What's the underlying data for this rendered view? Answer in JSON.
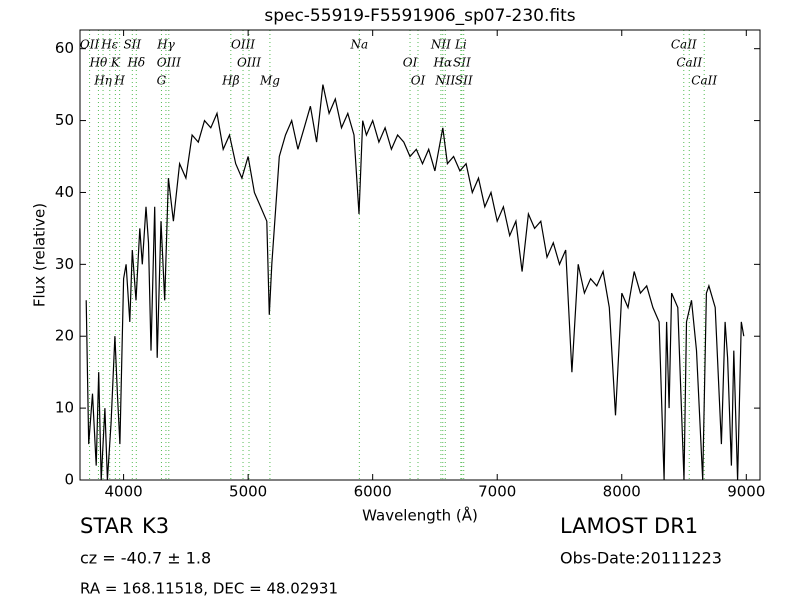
{
  "chart_data": {
    "type": "line",
    "title": "spec-55919-F5591906_sp07-230.fits",
    "xlabel": "Wavelength (Å)",
    "ylabel": "Flux (relative)",
    "color": "#000000",
    "line_color": "#55bb55",
    "xlim": [
      3650,
      9110
    ],
    "ylim": [
      0,
      62.6
    ],
    "xticks": [
      4000,
      5000,
      6000,
      7000,
      8000,
      9000
    ],
    "yticks": [
      0,
      10,
      20,
      30,
      40,
      50,
      60
    ],
    "x": [
      3700,
      3720,
      3750,
      3780,
      3800,
      3820,
      3850,
      3870,
      3900,
      3930,
      3950,
      3970,
      4000,
      4020,
      4050,
      4070,
      4100,
      4130,
      4150,
      4180,
      4200,
      4220,
      4250,
      4270,
      4300,
      4330,
      4360,
      4400,
      4450,
      4500,
      4550,
      4600,
      4650,
      4700,
      4750,
      4800,
      4850,
      4900,
      4950,
      5000,
      5050,
      5100,
      5150,
      5170,
      5190,
      5250,
      5300,
      5350,
      5400,
      5450,
      5500,
      5550,
      5600,
      5650,
      5700,
      5750,
      5800,
      5850,
      5890,
      5920,
      5950,
      6000,
      6050,
      6100,
      6150,
      6200,
      6250,
      6300,
      6350,
      6400,
      6450,
      6500,
      6563,
      6600,
      6650,
      6700,
      6750,
      6800,
      6850,
      6900,
      6950,
      7000,
      7050,
      7100,
      7150,
      7200,
      7250,
      7300,
      7350,
      7400,
      7450,
      7500,
      7550,
      7600,
      7650,
      7700,
      7750,
      7800,
      7850,
      7900,
      7950,
      8000,
      8050,
      8100,
      8150,
      8200,
      8250,
      8300,
      8340,
      8360,
      8380,
      8400,
      8450,
      8500,
      8520,
      8560,
      8600,
      8650,
      8680,
      8700,
      8750,
      8800,
      8830,
      8850,
      8880,
      8900,
      8930,
      8960,
      8980
    ],
    "values": [
      25,
      5,
      12,
      2,
      15,
      0,
      10,
      0,
      8,
      20,
      12,
      5,
      28,
      30,
      22,
      32,
      25,
      35,
      30,
      38,
      33,
      18,
      38,
      17,
      36,
      25,
      42,
      36,
      44,
      42,
      48,
      47,
      50,
      49,
      51,
      46,
      48,
      44,
      42,
      45,
      40,
      38,
      36,
      23,
      30,
      45,
      48,
      50,
      46,
      49,
      52,
      47,
      55,
      51,
      53,
      49,
      51,
      48,
      37,
      50,
      48,
      50,
      47,
      49,
      46,
      48,
      47,
      45,
      46,
      44,
      46,
      43,
      49,
      44,
      45,
      43,
      44,
      40,
      42,
      38,
      40,
      36,
      38,
      34,
      36,
      29,
      37,
      35,
      36,
      31,
      33,
      30,
      32,
      15,
      30,
      26,
      28,
      27,
      29,
      24,
      9,
      26,
      24,
      29,
      26,
      27,
      24,
      22,
      0,
      22,
      10,
      26,
      24,
      0,
      22,
      25,
      18,
      0,
      26,
      27,
      24,
      5,
      22,
      17,
      2,
      18,
      0,
      22,
      20
    ],
    "lines": [
      {
        "label": "OII",
        "x": 3727
      },
      {
        "label": "Hθ",
        "x": 3798
      },
      {
        "label": "Hη",
        "x": 3835
      },
      {
        "label": "Hε",
        "x": 3889
      },
      {
        "label": "K",
        "x": 3934
      },
      {
        "label": "H",
        "x": 3968
      },
      {
        "label": "SII",
        "x": 4070
      },
      {
        "label": "Hδ",
        "x": 4102
      },
      {
        "label": "G",
        "x": 4304
      },
      {
        "label": "Hγ",
        "x": 4340
      },
      {
        "label": "OIII",
        "x": 4363
      },
      {
        "label": "Hβ",
        "x": 4861
      },
      {
        "label": "OIII",
        "x": 4959
      },
      {
        "label": "OIII",
        "x": 5007
      },
      {
        "label": "Mg",
        "x": 5175
      },
      {
        "label": "Na",
        "x": 5893
      },
      {
        "label": "OI",
        "x": 6300
      },
      {
        "label": "OI",
        "x": 6364
      },
      {
        "label": "NII",
        "x": 6548
      },
      {
        "label": "Hα",
        "x": 6563
      },
      {
        "label": "NII",
        "x": 6583
      },
      {
        "label": "Li",
        "x": 6708
      },
      {
        "label": "SII",
        "x": 6716
      },
      {
        "label": "SII",
        "x": 6731
      },
      {
        "label": "CaII",
        "x": 8498
      },
      {
        "label": "CaII",
        "x": 8542
      },
      {
        "label": "CaII",
        "x": 8662
      }
    ]
  },
  "info": {
    "class": "STAR",
    "subclass": "K3",
    "cz": "cz = -40.7 ± 1.8",
    "coords": "RA = 168.11518, DEC = 48.02931",
    "survey": "LAMOST DR1",
    "obs_date": "Obs-Date:20111223"
  }
}
